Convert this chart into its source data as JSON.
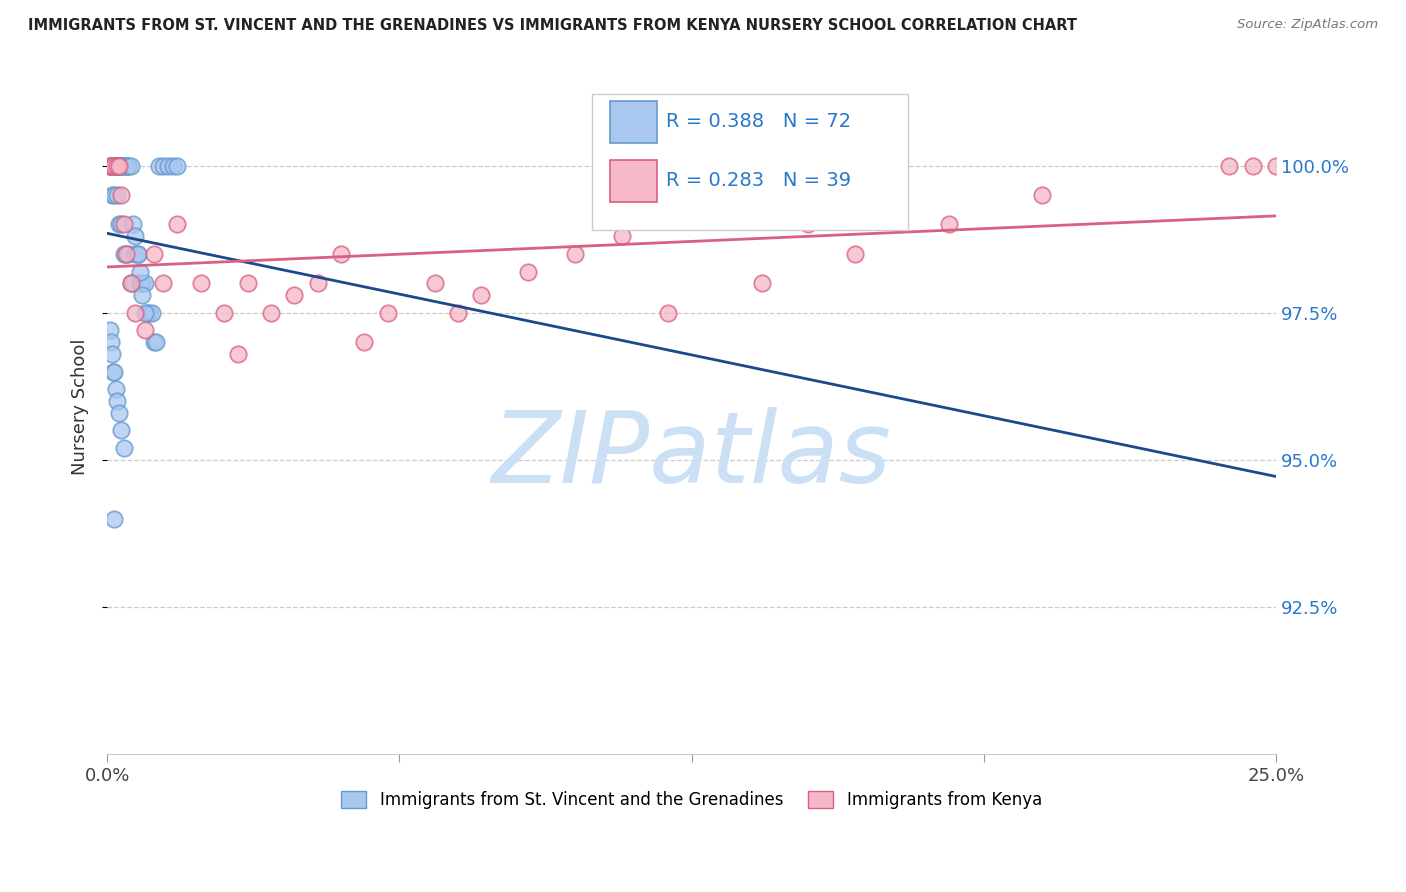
{
  "title": "IMMIGRANTS FROM ST. VINCENT AND THE GRENADINES VS IMMIGRANTS FROM KENYA NURSERY SCHOOL CORRELATION CHART",
  "source": "Source: ZipAtlas.com",
  "ylabel": "Nursery School",
  "xlim": [
    0.0,
    25.0
  ],
  "ylim": [
    90.0,
    101.8
  ],
  "ytick_labels": [
    "92.5%",
    "95.0%",
    "97.5%",
    "100.0%"
  ],
  "ytick_values": [
    92.5,
    95.0,
    97.5,
    100.0
  ],
  "series1_color": "#A8C8F0",
  "series1_edge": "#6699CC",
  "series1_line_color": "#1a4a8a",
  "series1_label": "Immigrants from St. Vincent and the Grenadines",
  "series1_R": "0.388",
  "series1_N": "72",
  "series2_color": "#F5B8C8",
  "series2_edge": "#D96080",
  "series2_line_color": "#D96080",
  "series2_label": "Immigrants from Kenya",
  "series2_R": "0.283",
  "series2_N": "39",
  "legend_R_color": "#2979C9",
  "watermark_text": "ZIPatlas",
  "watermark_color": "#cce0f5",
  "grid_color": "#cccccc",
  "ytick_color": "#2979C9"
}
